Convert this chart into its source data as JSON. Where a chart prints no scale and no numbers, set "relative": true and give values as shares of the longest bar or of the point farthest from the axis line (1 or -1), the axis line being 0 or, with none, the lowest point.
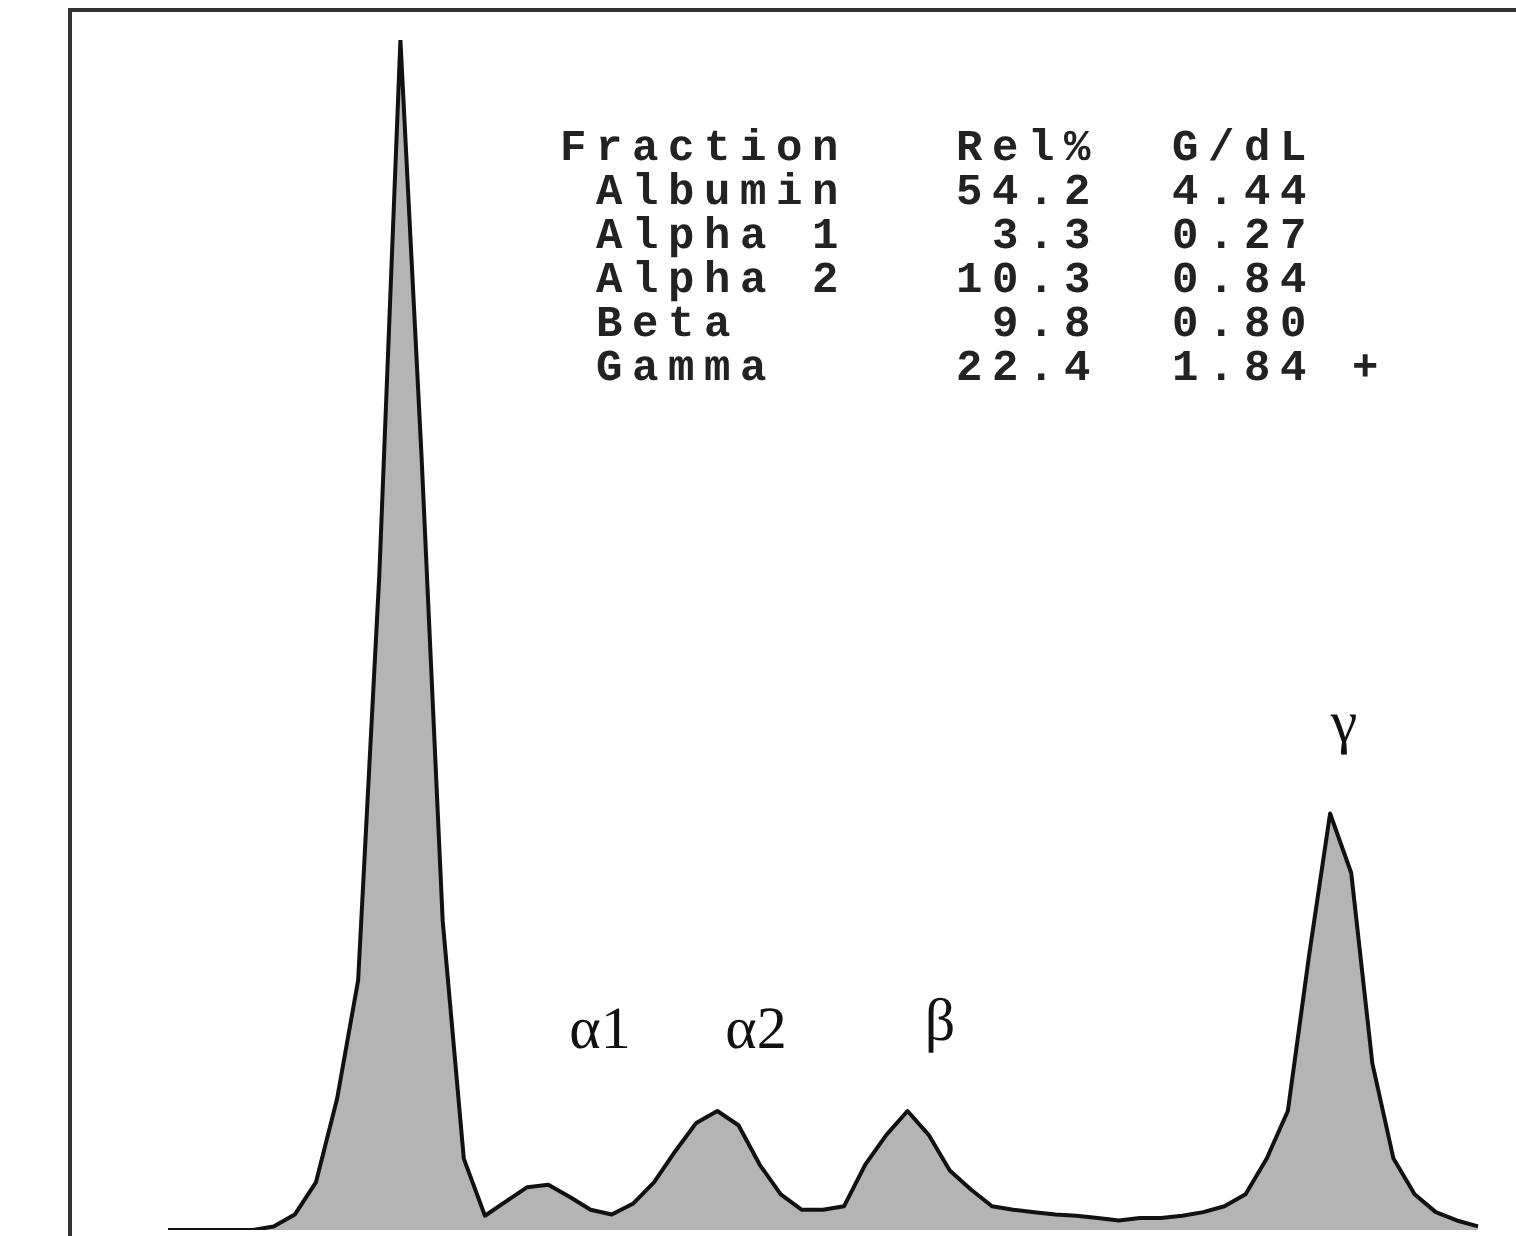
{
  "chart_data": {
    "type": "area",
    "relative": true,
    "tick_labels": false,
    "color": "#b4b4b4",
    "categories": [
      null,
      null,
      null,
      null,
      null,
      null,
      null,
      null,
      null,
      null,
      null,
      null,
      null,
      null,
      null,
      null,
      null,
      null,
      null,
      null,
      null,
      null,
      null,
      null,
      null,
      null,
      null,
      null,
      null,
      null,
      null,
      null,
      null,
      null,
      null,
      null,
      null,
      null,
      null,
      null,
      null,
      null,
      null,
      null,
      null,
      null,
      null,
      null,
      null,
      null,
      null,
      null,
      null,
      null,
      null,
      null,
      null,
      null,
      null,
      null,
      null,
      null,
      null
    ],
    "values": [
      0,
      0,
      0,
      0,
      0,
      0.003,
      0.013,
      0.04,
      0.11,
      0.21,
      0.55,
      1,
      0.65,
      0.26,
      0.06,
      0.012,
      0.024,
      0.036,
      0.038,
      0.028,
      0.017,
      0.013,
      0.022,
      0.04,
      0.066,
      0.09,
      0.1,
      0.088,
      0.055,
      0.03,
      0.017,
      0.017,
      0.02,
      0.055,
      0.08,
      0.1,
      0.08,
      0.05,
      0.034,
      0.02,
      0.017,
      0.015,
      0.013,
      0.012,
      0.01,
      0.008,
      0.01,
      0.01,
      0.012,
      0.015,
      0.02,
      0.03,
      0.06,
      0.1,
      0.23,
      0.35,
      0.3,
      0.14,
      0.06,
      0.03,
      0.015,
      0.008,
      0.003
    ],
    "annotations": [
      "Fraction   Rel%  G/dL",
      " Albumin   54.2  4.44",
      " Alpha 1    3.3  0.27",
      " Alpha 2   10.3  0.84",
      " Beta       9.8  0.80",
      " Gamma     22.4  1.84 +",
      "α1",
      "α2",
      "β",
      "γ"
    ]
  }
}
